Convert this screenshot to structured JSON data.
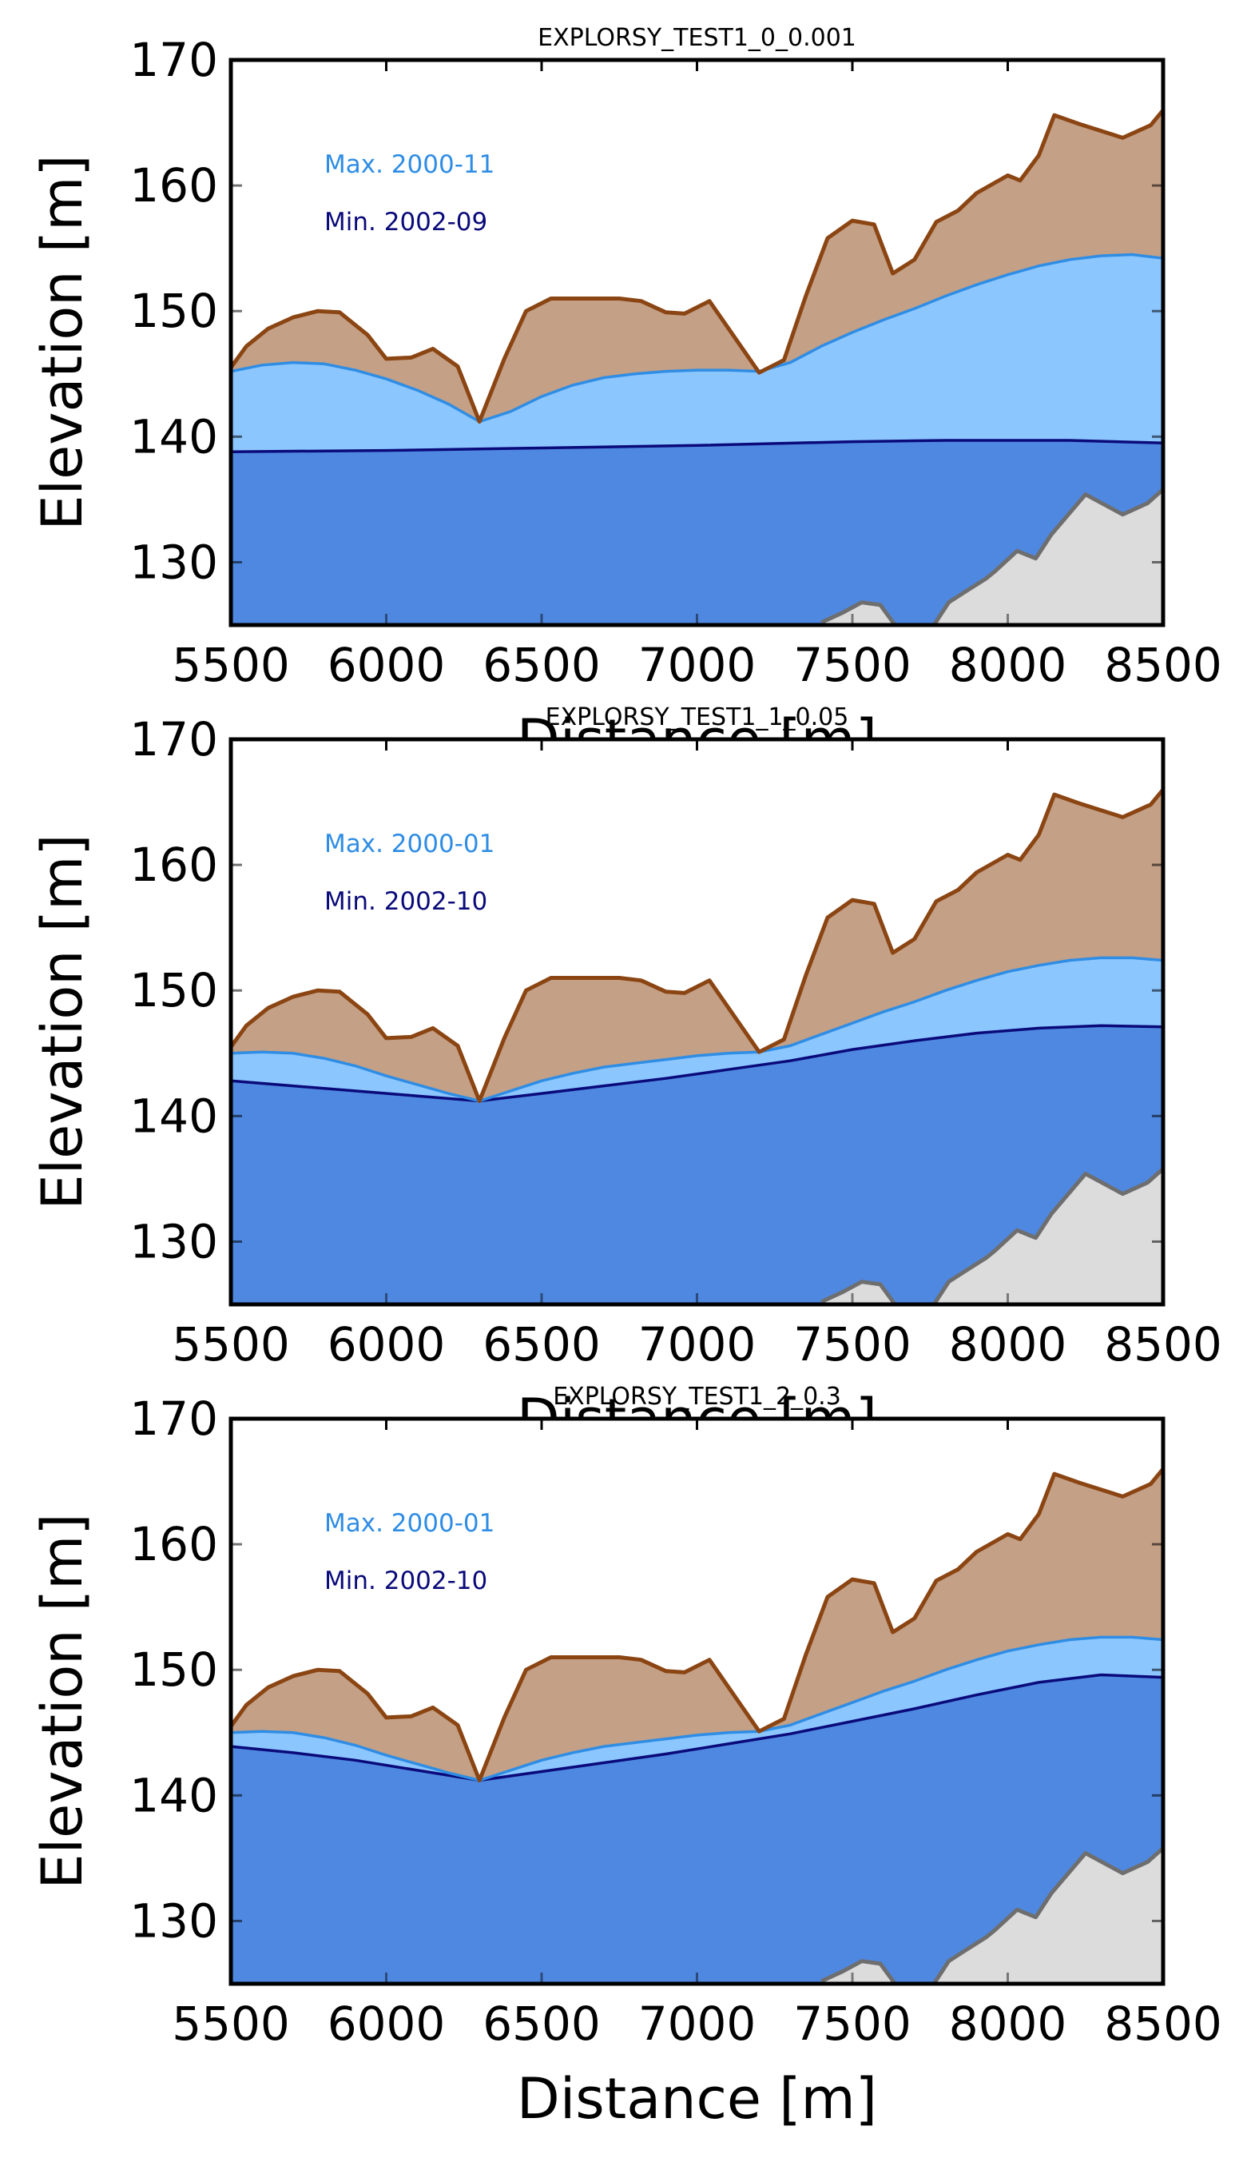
{
  "colors": {
    "bedrock_fill": "#dcdcdc",
    "bedrock_line": "#6e6e6e",
    "surface_fill": "#c4a086",
    "surface_line": "#8b4513",
    "max_head_fill": "#8cc6ff",
    "max_head_line": "#2f8de4",
    "min_head_fill": "#4f88e0",
    "min_head_line": "#0a0a7a"
  },
  "chart_data": [
    {
      "type": "area",
      "title": "EXPLORSY_TEST1_0_0.001",
      "xlabel": "Distance [m]",
      "ylabel": "Elevation [m]",
      "xlim": [
        5500,
        8500
      ],
      "ylim": [
        125,
        170
      ],
      "xticks": [
        "5500",
        "6000",
        "6500",
        "7000",
        "7500",
        "8000",
        "8500"
      ],
      "yticks": [
        "130",
        "140",
        "150",
        "160",
        "170"
      ],
      "grid": false,
      "legend": [
        {
          "label": "Max. 2000-11",
          "color": "#2f8de4"
        },
        {
          "label": "Min. 2002-09",
          "color": "#0a0a7a"
        }
      ],
      "series": [
        {
          "name": "Max. 2000-11",
          "x": [
            5500,
            5600,
            5700,
            5800,
            5900,
            6000,
            6100,
            6200,
            6300,
            6400,
            6500,
            6600,
            6700,
            6800,
            6900,
            7000,
            7100,
            7200,
            7300,
            7400,
            7500,
            7600,
            7700,
            7800,
            7900,
            8000,
            8100,
            8200,
            8300,
            8400,
            8500
          ],
          "values": [
            145.2,
            145.7,
            145.9,
            145.8,
            145.3,
            144.6,
            143.7,
            142.6,
            141.2,
            142.0,
            143.2,
            144.1,
            144.7,
            145.0,
            145.2,
            145.3,
            145.3,
            145.2,
            145.9,
            147.2,
            148.3,
            149.3,
            150.2,
            151.2,
            152.1,
            152.9,
            153.6,
            154.1,
            154.4,
            154.5,
            154.2
          ]
        },
        {
          "name": "Min. 2002-09",
          "x": [
            5500,
            6000,
            6500,
            7000,
            7500,
            7800,
            8200,
            8500
          ],
          "values": [
            138.8,
            138.9,
            139.1,
            139.3,
            139.6,
            139.7,
            139.7,
            139.5
          ]
        }
      ]
    },
    {
      "type": "area",
      "title": "EXPLORSY_TEST1_1_0.05",
      "xlabel": "Distance [m]",
      "ylabel": "Elevation [m]",
      "xlim": [
        5500,
        8500
      ],
      "ylim": [
        125,
        170
      ],
      "xticks": [
        "5500",
        "6000",
        "6500",
        "7000",
        "7500",
        "8000",
        "8500"
      ],
      "yticks": [
        "130",
        "140",
        "150",
        "160",
        "170"
      ],
      "grid": false,
      "legend": [
        {
          "label": "Max. 2000-01",
          "color": "#2f8de4"
        },
        {
          "label": "Min. 2002-10",
          "color": "#0a0a7a"
        }
      ],
      "series": [
        {
          "name": "Max. 2000-01",
          "x": [
            5500,
            5600,
            5700,
            5800,
            5900,
            6000,
            6100,
            6200,
            6300,
            6400,
            6500,
            6600,
            6700,
            6800,
            6900,
            7000,
            7100,
            7200,
            7300,
            7400,
            7500,
            7600,
            7700,
            7800,
            7900,
            8000,
            8100,
            8200,
            8300,
            8400,
            8500
          ],
          "values": [
            145.0,
            145.1,
            145.0,
            144.6,
            144.0,
            143.2,
            142.5,
            141.8,
            141.2,
            142.0,
            142.8,
            143.4,
            143.9,
            144.2,
            144.5,
            144.8,
            145.0,
            145.1,
            145.6,
            146.5,
            147.4,
            148.3,
            149.1,
            150.0,
            150.8,
            151.5,
            152.0,
            152.4,
            152.6,
            152.6,
            152.4
          ]
        },
        {
          "name": "Min. 2002-10",
          "x": [
            5500,
            5700,
            5900,
            6100,
            6300,
            6500,
            6700,
            6900,
            7100,
            7300,
            7500,
            7700,
            7900,
            8100,
            8300,
            8500
          ],
          "values": [
            142.8,
            142.4,
            142.0,
            141.6,
            141.2,
            141.8,
            142.4,
            143.0,
            143.7,
            144.4,
            145.3,
            146.0,
            146.6,
            147.0,
            147.2,
            147.1
          ]
        }
      ]
    },
    {
      "type": "area",
      "title": "EXPLORSY_TEST1_2_0.3",
      "xlabel": "Distance [m]",
      "ylabel": "Elevation [m]",
      "xlim": [
        5500,
        8500
      ],
      "ylim": [
        125,
        170
      ],
      "xticks": [
        "5500",
        "6000",
        "6500",
        "7000",
        "7500",
        "8000",
        "8500"
      ],
      "yticks": [
        "130",
        "140",
        "150",
        "160",
        "170"
      ],
      "grid": false,
      "legend": [
        {
          "label": "Max. 2000-01",
          "color": "#2f8de4"
        },
        {
          "label": "Min. 2002-10",
          "color": "#0a0a7a"
        }
      ],
      "series": [
        {
          "name": "Max. 2000-01",
          "x": [
            5500,
            5600,
            5700,
            5800,
            5900,
            6000,
            6100,
            6200,
            6300,
            6400,
            6500,
            6600,
            6700,
            6800,
            6900,
            7000,
            7100,
            7200,
            7300,
            7400,
            7500,
            7600,
            7700,
            7800,
            7900,
            8000,
            8100,
            8200,
            8300,
            8400,
            8500
          ],
          "values": [
            145.0,
            145.1,
            145.0,
            144.6,
            144.0,
            143.2,
            142.5,
            141.8,
            141.2,
            142.0,
            142.8,
            143.4,
            143.9,
            144.2,
            144.5,
            144.8,
            145.0,
            145.1,
            145.6,
            146.5,
            147.4,
            148.3,
            149.1,
            150.0,
            150.8,
            151.5,
            152.0,
            152.4,
            152.6,
            152.6,
            152.4
          ]
        },
        {
          "name": "Min. 2002-10",
          "x": [
            5500,
            5700,
            5900,
            6100,
            6300,
            6500,
            6700,
            6900,
            7100,
            7300,
            7500,
            7700,
            7900,
            8100,
            8300,
            8500
          ],
          "values": [
            143.9,
            143.4,
            142.8,
            142.0,
            141.2,
            141.9,
            142.6,
            143.3,
            144.1,
            144.9,
            145.9,
            146.9,
            148.0,
            149.0,
            149.6,
            149.4
          ]
        }
      ]
    }
  ],
  "ground_surface": {
    "x": [
      5500,
      5550,
      5620,
      5700,
      5780,
      5850,
      5940,
      6000,
      6080,
      6150,
      6230,
      6300,
      6380,
      6450,
      6530,
      6650,
      6750,
      6820,
      6900,
      6960,
      7040,
      7200,
      7280,
      7350,
      7420,
      7500,
      7570,
      7630,
      7700,
      7770,
      7840,
      7900,
      8000,
      8040,
      8100,
      8150,
      8230,
      8370,
      8460,
      8500
    ],
    "values": [
      145.5,
      147.2,
      148.6,
      149.5,
      150.0,
      149.9,
      148.1,
      146.2,
      146.3,
      147.0,
      145.6,
      141.2,
      146.2,
      150.0,
      151.0,
      151.0,
      151.0,
      150.8,
      149.9,
      149.8,
      150.8,
      145.1,
      146.1,
      151.2,
      155.8,
      157.2,
      156.9,
      153.0,
      154.1,
      157.1,
      158.0,
      159.4,
      160.8,
      160.4,
      162.4,
      165.6,
      164.9,
      163.8,
      164.8,
      166.0
    ]
  },
  "bedrock_surface": {
    "x": [
      7400,
      7470,
      7530,
      7590,
      7640,
      7760,
      7810,
      7860,
      7930,
      7960,
      8030,
      8090,
      8140,
      8250,
      8370,
      8450,
      8500
    ],
    "values": [
      125.2,
      126.0,
      126.8,
      126.6,
      124.9,
      124.9,
      126.8,
      127.6,
      128.7,
      129.3,
      130.9,
      130.3,
      132.2,
      135.4,
      133.8,
      134.7,
      135.8
    ]
  }
}
